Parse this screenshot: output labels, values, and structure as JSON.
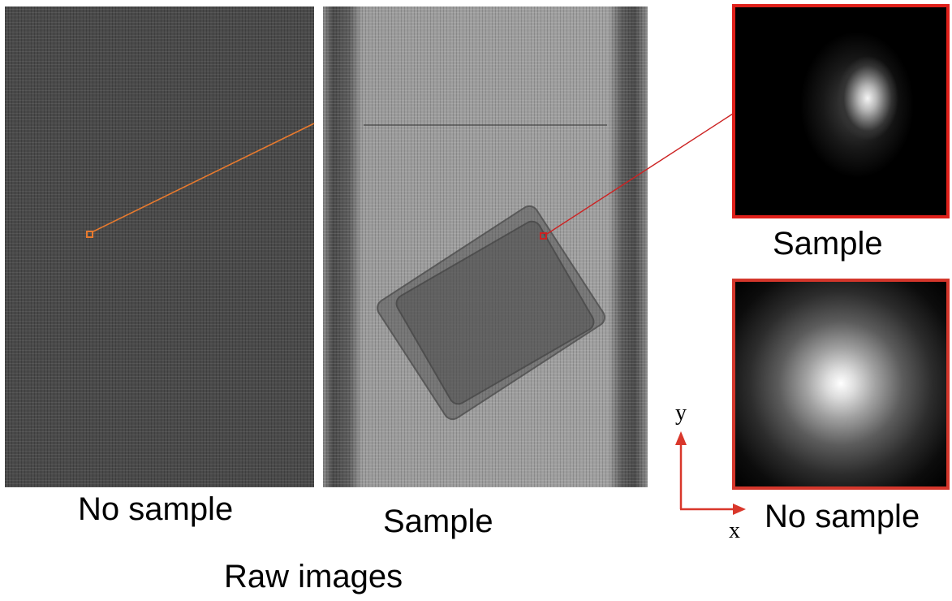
{
  "panels": {
    "raw_no_sample_label": "No sample",
    "raw_sample_label": "Sample",
    "raw_group_label": "Raw images",
    "zoom_sample_label": "Sample",
    "zoom_no_sample_label": "No sample"
  },
  "axes": {
    "x_label": "x",
    "y_label": "y"
  },
  "colors": {
    "orange_marker": "#e87a2e",
    "red_marker": "#cc2222",
    "zoom_sample_border": "#e0201a",
    "zoom_no_sample_border": "#d4362b",
    "axis_arrow": "#d9372b"
  }
}
